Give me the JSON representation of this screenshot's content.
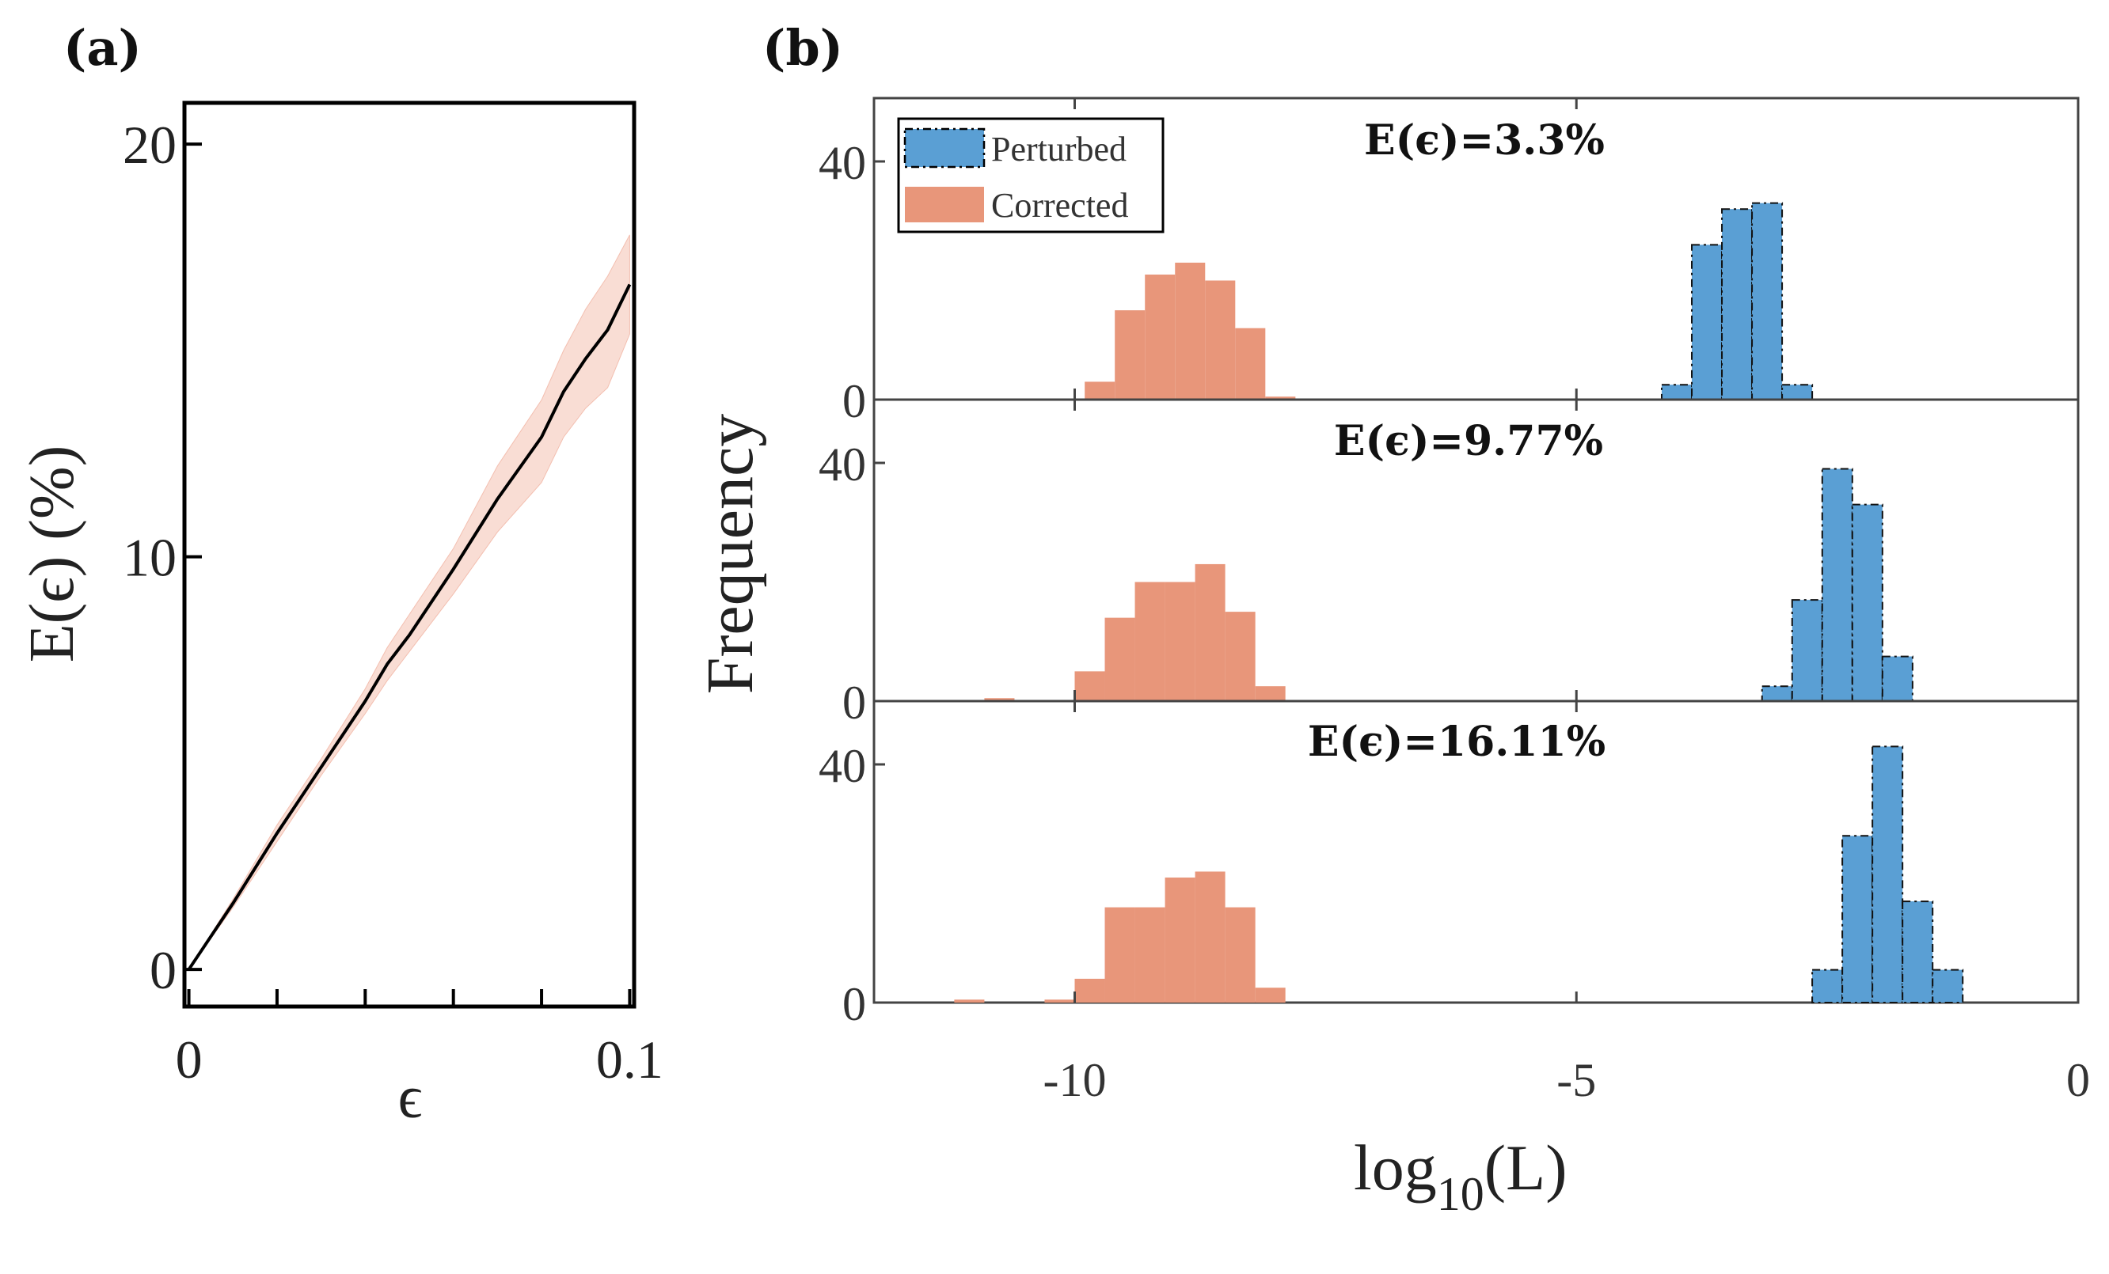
{
  "panels": {
    "a": {
      "label": "(a)"
    },
    "b": {
      "label": "(b)"
    }
  },
  "colors": {
    "perturbed": "#5a9fd4",
    "corrected": "#e8967a",
    "band": "#f9ddd4",
    "line": "#000000"
  },
  "chart_data": [
    {
      "type": "line",
      "panel": "a",
      "xlabel": "ϵ",
      "ylabel": "E(ϵ) (%)",
      "xlim": [
        -0.001,
        0.101
      ],
      "ylim": [
        -0.9,
        21
      ],
      "xticks": [
        0,
        0.02,
        0.04,
        0.06,
        0.08,
        0.1
      ],
      "xtick_labels": [
        "0",
        "",
        "",
        "",
        "",
        "0.1"
      ],
      "yticks": [
        0,
        10,
        20
      ],
      "ytick_labels": [
        "0",
        "10",
        "20"
      ],
      "x": [
        0,
        0.01,
        0.02,
        0.03,
        0.04,
        0.045,
        0.05,
        0.06,
        0.07,
        0.08,
        0.085,
        0.09,
        0.095,
        0.1
      ],
      "y": [
        0,
        1.6,
        3.3,
        4.9,
        6.5,
        7.4,
        8.1,
        9.7,
        11.4,
        12.9,
        14.0,
        14.8,
        15.5,
        16.6
      ],
      "lower": [
        0,
        1.5,
        3.1,
        4.7,
        6.2,
        7.0,
        7.7,
        9.1,
        10.6,
        11.8,
        12.9,
        13.6,
        14.1,
        15.4
      ],
      "upper": [
        0,
        1.7,
        3.5,
        5.1,
        6.8,
        7.8,
        8.6,
        10.2,
        12.2,
        13.8,
        15.0,
        16.0,
        16.8,
        17.8
      ]
    },
    {
      "type": "bar",
      "panel": "b",
      "xlabel_base": "log",
      "xlabel_sub": "10",
      "xlabel_rest": "(L)",
      "ylabel": "Frequency",
      "xlim": [
        -12,
        0
      ],
      "xticks": [
        -10,
        -5,
        0
      ],
      "xtick_labels": [
        "-10",
        "-5",
        "0"
      ],
      "yticks": [
        0,
        40
      ],
      "ytick_labels": [
        "0",
        "40"
      ],
      "ylim": [
        0,
        50
      ],
      "bin_width": 0.3,
      "legend": {
        "perturbed": "Perturbed",
        "corrected": "Corrected"
      },
      "subplots": [
        {
          "annotation": "E(ϵ)=3.3%",
          "corrected": {
            "edges_start": -9.9,
            "counts": [
              3,
              15,
              21,
              23,
              20,
              12,
              0.5
            ]
          },
          "perturbed": {
            "edges_start": -4.15,
            "counts": [
              2.5,
              26,
              32,
              33,
              2.5
            ]
          }
        },
        {
          "annotation": "E(ϵ)=9.77%",
          "corrected": {
            "edges_start": -10.9,
            "counts": [
              0.5,
              0,
              0,
              5,
              14,
              20,
              20,
              23,
              15,
              2.5
            ]
          },
          "perturbed": {
            "edges_start": -3.15,
            "counts": [
              2.5,
              17,
              39,
              33,
              7.5
            ]
          }
        },
        {
          "annotation": "E(ϵ)=16.11%",
          "corrected": {
            "edges_start": -11.2,
            "counts": [
              0.5,
              0,
              0,
              0.5,
              4,
              16,
              16,
              21,
              22,
              16,
              2.5
            ]
          },
          "perturbed": {
            "edges_start": -2.65,
            "counts": [
              5.5,
              28,
              43,
              17,
              5.5
            ]
          }
        }
      ]
    }
  ]
}
